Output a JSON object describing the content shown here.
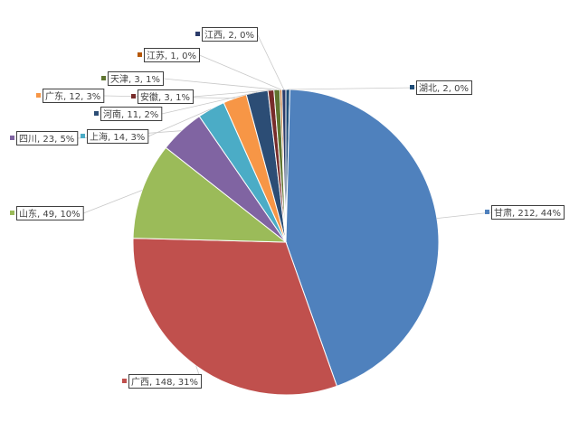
{
  "chart_data": {
    "type": "pie",
    "title": "",
    "legend": "none",
    "start_series": "湖北",
    "slices": [
      {
        "name": "湖北",
        "value": 2,
        "percent": "0%",
        "label": "湖北, 2, 0%",
        "color": "#1F4E79"
      },
      {
        "name": "甘肃",
        "value": 212,
        "percent": "44%",
        "label": "甘肃, 212, 44%",
        "color": "#4F81BD"
      },
      {
        "name": "广西",
        "value": 148,
        "percent": "31%",
        "label": "广西, 148, 31%",
        "color": "#C0504D"
      },
      {
        "name": "山东",
        "value": 49,
        "percent": "10%",
        "label": "山东, 49, 10%",
        "color": "#9BBB59"
      },
      {
        "name": "四川",
        "value": 23,
        "percent": "5%",
        "label": "四川, 23, 5%",
        "color": "#8064A2"
      },
      {
        "name": "上海",
        "value": 14,
        "percent": "3%",
        "label": "上海, 14, 3%",
        "color": "#4BACC6"
      },
      {
        "name": "广东",
        "value": 12,
        "percent": "3%",
        "label": "广东, 12, 3%",
        "color": "#F79646"
      },
      {
        "name": "河南",
        "value": 11,
        "percent": "2%",
        "label": "河南, 11, 2%",
        "color": "#2C4D75"
      },
      {
        "name": "安徽",
        "value": 3,
        "percent": "1%",
        "label": "安徽, 3, 1%",
        "color": "#772C2A"
      },
      {
        "name": "天津",
        "value": 3,
        "percent": "1%",
        "label": "天津, 3, 1%",
        "color": "#5F7530"
      },
      {
        "name": "江苏",
        "value": 1,
        "percent": "0%",
        "label": "江苏, 1, 0%",
        "color": "#B65708"
      },
      {
        "name": "江西",
        "value": 2,
        "percent": "0%",
        "label": "江西, 2, 0%",
        "color": "#2B3B6A"
      }
    ]
  }
}
